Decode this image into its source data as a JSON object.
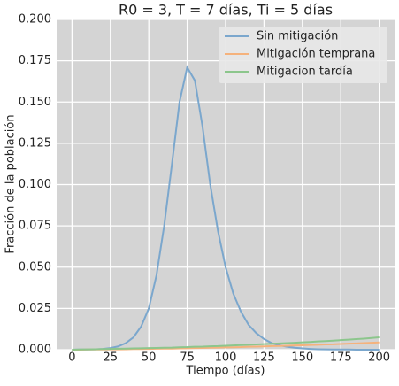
{
  "chart_data": {
    "type": "line",
    "title": "R0 = 3, T = 7 días, Ti = 5 días",
    "x_label": "Tiempo (días)",
    "y_label": "Fracción de la población",
    "x": [
      0,
      5,
      10,
      15,
      20,
      25,
      30,
      35,
      40,
      45,
      50,
      55,
      60,
      65,
      70,
      75,
      80,
      85,
      90,
      95,
      100,
      105,
      110,
      115,
      120,
      125,
      130,
      135,
      140,
      145,
      150,
      155,
      160,
      165,
      170,
      175,
      180,
      185,
      190,
      195,
      200
    ],
    "series": [
      {
        "name": "Sin mitigación",
        "color": "#7ba7cd",
        "values": [
          0,
          0.0001,
          0.0001,
          0.0002,
          0.0005,
          0.001,
          0.002,
          0.004,
          0.0075,
          0.014,
          0.025,
          0.045,
          0.075,
          0.112,
          0.15,
          0.171,
          0.163,
          0.135,
          0.1,
          0.072,
          0.05,
          0.034,
          0.023,
          0.015,
          0.01,
          0.0065,
          0.004,
          0.0027,
          0.0018,
          0.0012,
          0.0008,
          0.0005,
          0.0003,
          0.0002,
          0.0001,
          0.0001,
          0.0001,
          0,
          0,
          0,
          0
        ]
      },
      {
        "name": "Mitigación temprana",
        "color": "#f5b27c",
        "values": [
          0,
          0,
          0.0001,
          0.0001,
          0.0001,
          0.0002,
          0.0002,
          0.0003,
          0.0004,
          0.0004,
          0.0005,
          0.0006,
          0.0007,
          0.0007,
          0.0008,
          0.0009,
          0.001,
          0.0011,
          0.0012,
          0.0013,
          0.0014,
          0.0015,
          0.0016,
          0.0018,
          0.0019,
          0.002,
          0.0022,
          0.0023,
          0.0024,
          0.0026,
          0.0027,
          0.0029,
          0.003,
          0.0032,
          0.0033,
          0.0035,
          0.0037,
          0.0038,
          0.004,
          0.0042,
          0.0044
        ]
      },
      {
        "name": "Mitigacion tardía",
        "color": "#8cc68c",
        "values": [
          0,
          0.0001,
          0.0002,
          0.0003,
          0.0004,
          0.0005,
          0.0006,
          0.0007,
          0.0008,
          0.0009,
          0.001,
          0.0011,
          0.0012,
          0.0013,
          0.0015,
          0.0016,
          0.0018,
          0.0019,
          0.0021,
          0.0022,
          0.0024,
          0.0026,
          0.0028,
          0.003,
          0.0032,
          0.0034,
          0.0036,
          0.0038,
          0.004,
          0.0042,
          0.0045,
          0.0047,
          0.005,
          0.0052,
          0.0055,
          0.0058,
          0.0061,
          0.0064,
          0.0067,
          0.0071,
          0.0075
        ]
      }
    ],
    "xlim": [
      -10,
      210
    ],
    "xticks": [
      0,
      25,
      50,
      75,
      100,
      125,
      150,
      175,
      200
    ],
    "ylim": [
      0,
      0.2
    ],
    "yticks": [
      {
        "value": 0,
        "label": "0.000"
      },
      0.025,
      {
        "value": 0.05,
        "label": "0.050"
      },
      0.075,
      {
        "value": 0.1,
        "label": "0.100"
      },
      0.125,
      {
        "value": 0.15,
        "label": "0.150"
      },
      0.175,
      {
        "value": 0.2,
        "label": "0.200"
      }
    ],
    "grid": true,
    "legend": "upper right"
  }
}
